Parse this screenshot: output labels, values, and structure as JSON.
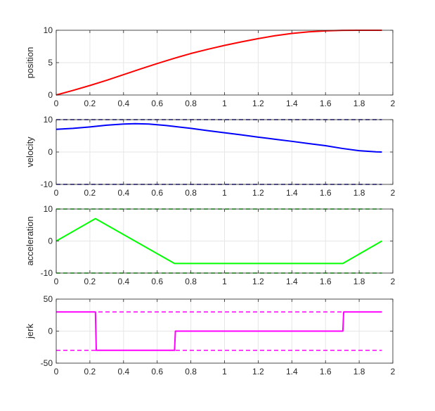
{
  "chart_data": [
    {
      "type": "line",
      "ylabel": "position",
      "xlim": [
        0,
        2
      ],
      "ylim": [
        0,
        10
      ],
      "xticks": [
        "0",
        "0.2",
        "0.4",
        "0.6",
        "0.8",
        "1",
        "1.2",
        "1.4",
        "1.6",
        "1.8",
        "2"
      ],
      "yticks": [
        "0",
        "5",
        "10"
      ],
      "grid": true,
      "series": [
        {
          "color": "#ff0000",
          "style": "solid",
          "x": [
            0,
            0.1,
            0.2,
            0.3,
            0.4,
            0.5,
            0.6,
            0.7,
            0.8,
            0.9,
            1.0,
            1.1,
            1.2,
            1.3,
            1.4,
            1.5,
            1.6,
            1.7,
            1.8,
            1.9,
            1.935
          ],
          "y": [
            0,
            0.71,
            1.47,
            2.28,
            3.14,
            4.01,
            4.86,
            5.66,
            6.41,
            7.06,
            7.66,
            8.21,
            8.71,
            9.16,
            9.51,
            9.76,
            9.91,
            9.98,
            10.0,
            10.0,
            10.0
          ]
        }
      ]
    },
    {
      "type": "line",
      "ylabel": "velocity",
      "xlim": [
        0,
        2
      ],
      "ylim": [
        -10,
        10
      ],
      "xticks": [
        "0",
        "0.2",
        "0.4",
        "0.6",
        "0.8",
        "1",
        "1.2",
        "1.4",
        "1.6",
        "1.8",
        "2"
      ],
      "yticks": [
        "-10",
        "0",
        "10"
      ],
      "grid": true,
      "series": [
        {
          "color": "#0000ff",
          "style": "solid",
          "x": [
            0,
            0.1,
            0.2,
            0.3,
            0.4,
            0.47,
            0.55,
            0.65,
            0.7,
            0.8,
            0.9,
            1.0,
            1.1,
            1.2,
            1.3,
            1.4,
            1.5,
            1.6,
            1.7,
            1.8,
            1.9,
            1.935
          ],
          "y": [
            7.0,
            7.3,
            7.75,
            8.3,
            8.65,
            8.75,
            8.65,
            8.2,
            7.9,
            7.3,
            6.6,
            5.95,
            5.3,
            4.6,
            3.95,
            3.3,
            2.6,
            1.95,
            1.1,
            0.4,
            0.05,
            0.0
          ]
        },
        {
          "color": "#00008b",
          "style": "dashed",
          "x": [
            0,
            1.935
          ],
          "y": [
            10,
            10
          ]
        },
        {
          "color": "#00008b",
          "style": "dashed",
          "x": [
            0,
            1.935
          ],
          "y": [
            -10,
            -10
          ]
        }
      ]
    },
    {
      "type": "line",
      "ylabel": "acceleration",
      "xlim": [
        0,
        2
      ],
      "ylim": [
        -10,
        10
      ],
      "xticks": [
        "0",
        "0.2",
        "0.4",
        "0.6",
        "0.8",
        "1",
        "1.2",
        "1.4",
        "1.6",
        "1.8",
        "2"
      ],
      "yticks": [
        "-10",
        "0",
        "10"
      ],
      "grid": true,
      "series": [
        {
          "color": "#00ff00",
          "style": "solid",
          "x": [
            0,
            0.233,
            0.703,
            1.703,
            1.935
          ],
          "y": [
            0,
            7,
            -7,
            -7,
            0
          ]
        },
        {
          "color": "#00c800",
          "style": "dashed",
          "x": [
            0,
            1.935
          ],
          "y": [
            10,
            10
          ]
        },
        {
          "color": "#00c800",
          "style": "dashed",
          "x": [
            0,
            1.935
          ],
          "y": [
            -10,
            -10
          ]
        }
      ]
    },
    {
      "type": "line",
      "ylabel": "jerk",
      "xlim": [
        0,
        2
      ],
      "ylim": [
        -50,
        50
      ],
      "xticks": [
        "0",
        "0.2",
        "0.4",
        "0.6",
        "0.8",
        "1",
        "1.2",
        "1.4",
        "1.6",
        "1.8",
        "2"
      ],
      "yticks": [
        "-50",
        "0",
        "50"
      ],
      "grid": true,
      "series": [
        {
          "color": "#ff00ff",
          "style": "solid",
          "x": [
            0,
            0.233,
            0.238,
            0.703,
            0.708,
            1.703,
            1.708,
            1.935
          ],
          "y": [
            30,
            30,
            -30,
            -30,
            0,
            0,
            30,
            30
          ]
        },
        {
          "color": "#ff00ff",
          "style": "dashed",
          "x": [
            0,
            1.935
          ],
          "y": [
            30,
            30
          ]
        },
        {
          "color": "#ff00ff",
          "style": "dashed",
          "x": [
            0,
            1.935
          ],
          "y": [
            -30,
            -30
          ]
        }
      ]
    }
  ]
}
